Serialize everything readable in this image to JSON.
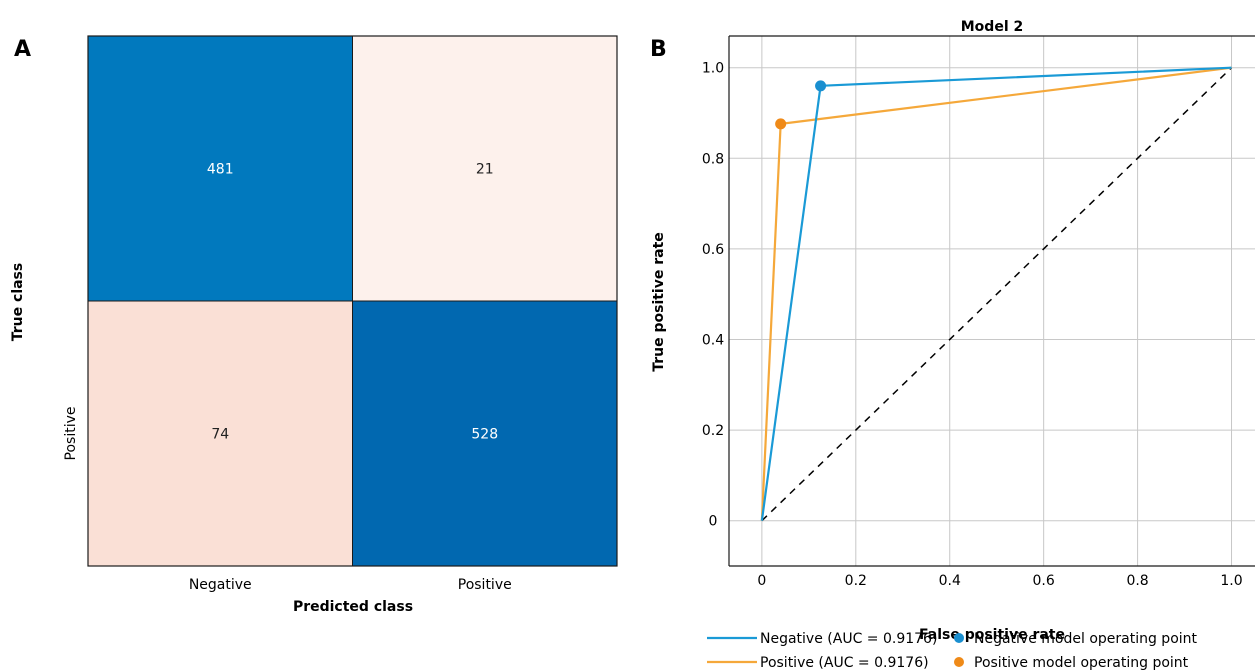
{
  "chart_data": [
    {
      "type": "heatmap",
      "panel": "A",
      "xlabel": "Predicted class",
      "ylabel": "True class",
      "x_categories": [
        "Negative",
        "Positive"
      ],
      "y_categories": [
        "",
        "Positive"
      ],
      "matrix": [
        [
          481,
          21
        ],
        [
          74,
          528
        ]
      ],
      "colors": [
        [
          "#0179be",
          "#fdf1ec"
        ],
        [
          "#fae0d6",
          "#0168b0"
        ]
      ]
    },
    {
      "type": "line",
      "panel": "B",
      "title": "Model 2",
      "xlabel": "False positive rate",
      "ylabel": "True positive rate",
      "xlim": [
        -0.07,
        1.05
      ],
      "ylim": [
        -0.1,
        1.07
      ],
      "x_ticks": [
        0,
        0.2,
        0.4,
        0.6,
        0.8,
        1.0
      ],
      "x_tick_labels": [
        "0",
        "0.2",
        "0.4",
        "0.6",
        "0.8",
        "1.0"
      ],
      "y_ticks": [
        0,
        0.2,
        0.4,
        0.6,
        0.8,
        1.0
      ],
      "y_tick_labels": [
        "0",
        "0.2",
        "0.4",
        "0.6",
        "0.8",
        "1.0"
      ],
      "grid": true,
      "legend_position": "bottom",
      "series": [
        {
          "name": "Negative (AUC = 0.9176)",
          "x": [
            0,
            0.125,
            1.0
          ],
          "y": [
            0,
            0.96,
            1.0
          ],
          "color": "#1a9ad6"
        },
        {
          "name": "Positive (AUC = 0.9176)",
          "x": [
            0,
            0.04,
            1.0
          ],
          "y": [
            0,
            0.876,
            1.0
          ],
          "color": "#f5a83a"
        }
      ],
      "operating_points": [
        {
          "name": "Negative model operating point",
          "x": 0.125,
          "y": 0.96,
          "color": "#1a8fd0"
        },
        {
          "name": "Positive model operating point",
          "x": 0.04,
          "y": 0.876,
          "color": "#ef8a18"
        }
      ],
      "diagonal": {
        "x": [
          0,
          1
        ],
        "y": [
          0,
          1
        ],
        "color": "#000000"
      }
    }
  ]
}
